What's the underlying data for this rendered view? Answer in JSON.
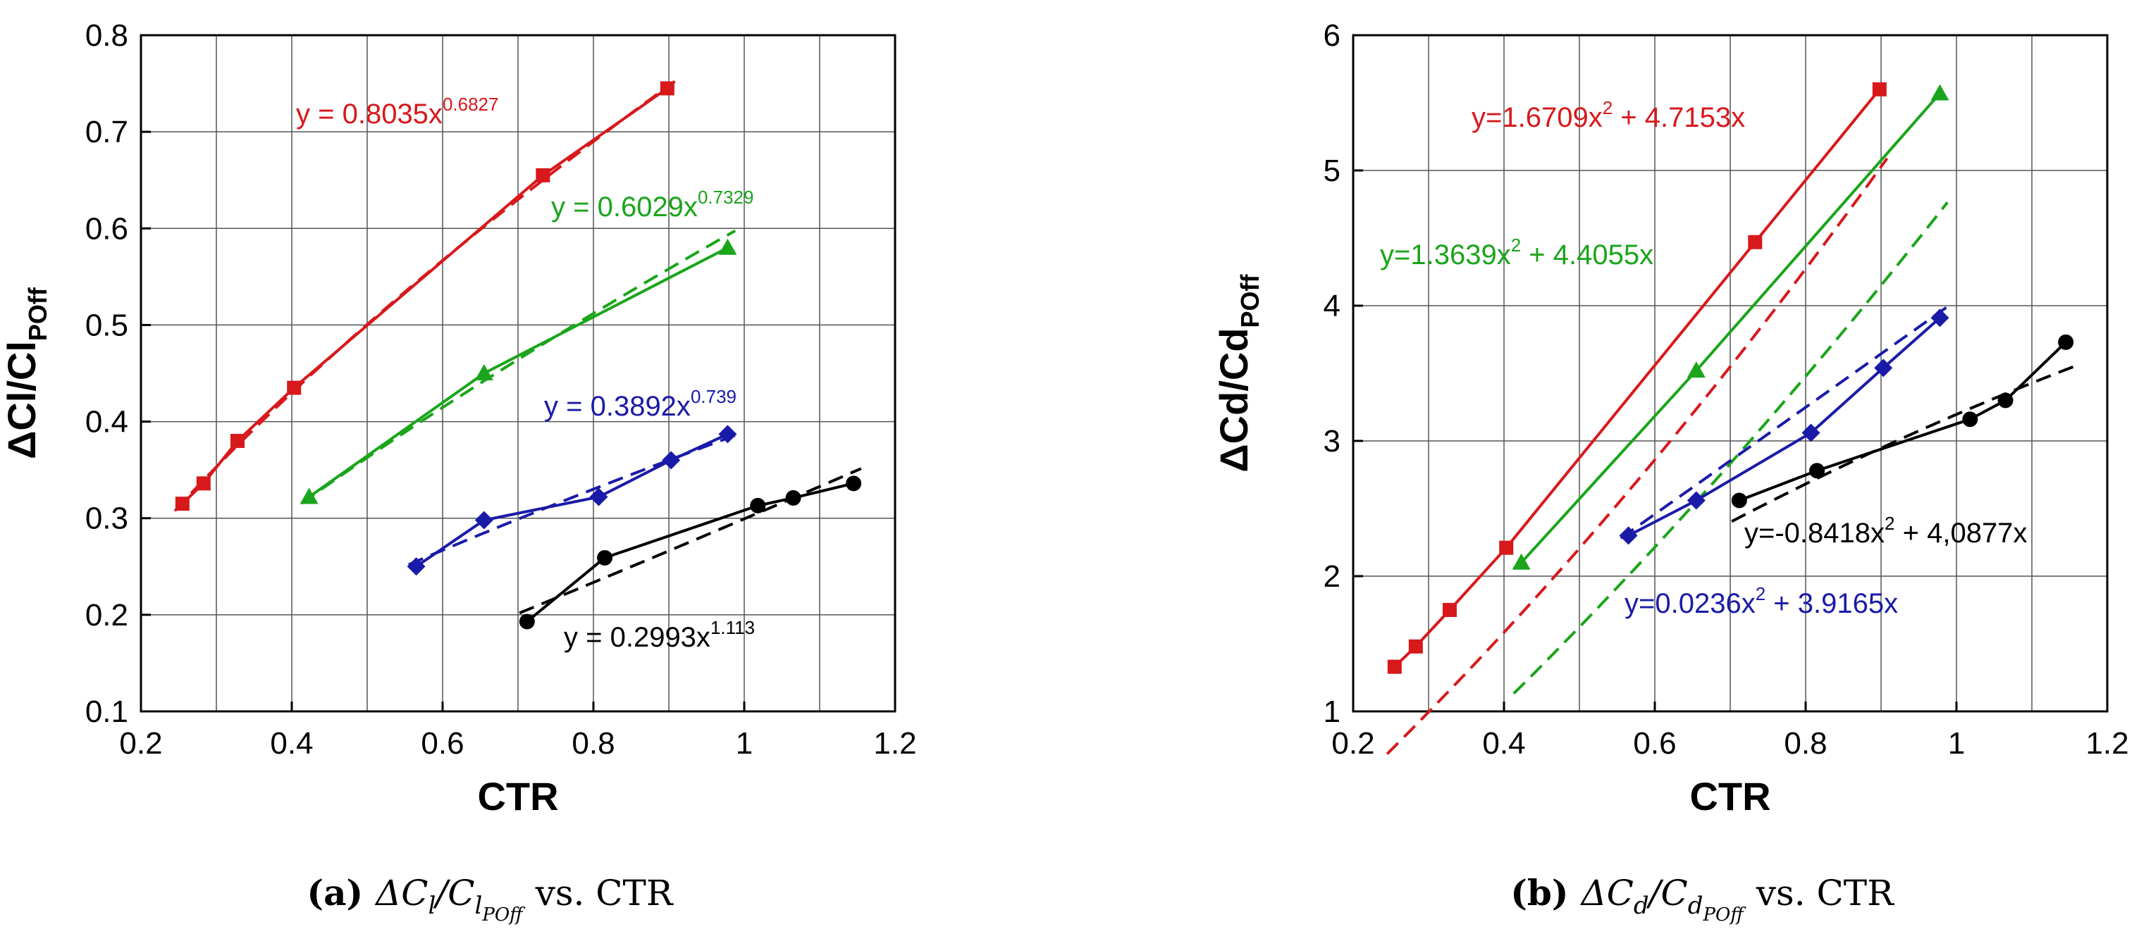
{
  "chart_data": [
    {
      "type": "line",
      "id": "left",
      "xlabel": "CTR",
      "ylabel_main": "ΔCl/Cl",
      "ylabel_sub": "POff",
      "xlim": [
        0.2,
        1.2
      ],
      "ylim": [
        0.1,
        0.8
      ],
      "xticks": [
        0.2,
        0.4,
        0.6,
        0.8,
        1.0,
        1.2
      ],
      "xtick_labels": [
        "0.2",
        "0.4",
        "0.6",
        "0.8",
        "1",
        "1.2"
      ],
      "yticks": [
        0.1,
        0.2,
        0.3,
        0.4,
        0.5,
        0.6,
        0.7,
        0.8
      ],
      "ytick_labels": [
        "0.1",
        "0.2",
        "0.3",
        "0.4",
        "0.5",
        "0.6",
        "0.7",
        "0.8"
      ],
      "caption": {
        "label": "(a)",
        "text": "ΔC",
        "sub": "l",
        "slash": "/C",
        "sub2": "l",
        "sub3": "POff",
        "tail": "vs. CTR"
      },
      "series": [
        {
          "name": "red",
          "color": "#d7191c",
          "marker": "square",
          "x": [
            0.255,
            0.283,
            0.328,
            0.403,
            0.733,
            0.898
          ],
          "y": [
            0.315,
            0.336,
            0.38,
            0.435,
            0.655,
            0.745
          ],
          "fit": {
            "type": "power",
            "a": 0.8035,
            "b": 0.6827
          },
          "equation": {
            "base": "y = 0.8035x",
            "sup": "0.6827"
          }
        },
        {
          "name": "green",
          "color": "#1aa51a",
          "marker": "triangle",
          "x": [
            0.423,
            0.655,
            0.978
          ],
          "y": [
            0.322,
            0.45,
            0.58
          ],
          "fit": {
            "type": "power",
            "a": 0.6029,
            "b": 0.7329
          },
          "equation": {
            "base": "y = 0.6029x",
            "sup": "0.7329"
          }
        },
        {
          "name": "blue",
          "color": "#1a1aa8",
          "marker": "diamond",
          "x": [
            0.565,
            0.655,
            0.807,
            0.903,
            0.978
          ],
          "y": [
            0.25,
            0.298,
            0.322,
            0.36,
            0.387
          ],
          "fit": {
            "type": "power",
            "a": 0.3892,
            "b": 0.739
          },
          "equation": {
            "base": "y = 0.3892x",
            "sup": "0.739"
          }
        },
        {
          "name": "black",
          "color": "#000000",
          "marker": "circle",
          "x": [
            0.712,
            0.815,
            1.018,
            1.065,
            1.145
          ],
          "y": [
            0.193,
            0.259,
            0.313,
            0.321,
            0.336
          ],
          "fit": {
            "type": "power",
            "a": 0.2993,
            "b": 1.113
          },
          "equation": {
            "base": "y = 0.2993x",
            "sup": "1.113"
          }
        }
      ]
    },
    {
      "type": "line",
      "id": "right",
      "xlabel": "CTR",
      "ylabel_main": "ΔCd/Cd",
      "ylabel_sub": "POff",
      "xlim": [
        0.2,
        1.2
      ],
      "ylim": [
        1,
        6
      ],
      "xticks": [
        0.2,
        0.4,
        0.6,
        0.8,
        1.0,
        1.2
      ],
      "xtick_labels": [
        "0.2",
        "0.4",
        "0.6",
        "0.8",
        "1",
        "1.2"
      ],
      "yticks": [
        1,
        2,
        3,
        4,
        5,
        6
      ],
      "ytick_labels": [
        "1",
        "2",
        "3",
        "4",
        "5",
        "6"
      ],
      "caption": {
        "label": "(b)",
        "text": "ΔC",
        "sub": "d",
        "slash": "/C",
        "sub2": "d",
        "sub3": "POff",
        "tail": "vs. CTR"
      },
      "series": [
        {
          "name": "red",
          "color": "#d7191c",
          "marker": "square",
          "x": [
            0.255,
            0.283,
            0.328,
            0.403,
            0.733,
            0.898
          ],
          "y": [
            1.33,
            1.48,
            1.75,
            2.21,
            4.47,
            5.6
          ],
          "fit": {
            "type": "quad",
            "a": 1.6709,
            "b": 4.7153,
            "shift": -0.57
          },
          "equation": {
            "base": "y=1.6709x",
            "sup": "2",
            "tail": " + 4.7153x"
          }
        },
        {
          "name": "green",
          "color": "#1aa51a",
          "marker": "triangle",
          "x": [
            0.423,
            0.655,
            0.978
          ],
          "y": [
            2.1,
            3.52,
            5.57
          ],
          "fit": {
            "type": "quad",
            "a": 1.3639,
            "b": 4.4055,
            "shift": -0.92
          },
          "equation": {
            "base": "y=1.3639x",
            "sup": "2",
            "tail": " + 4.4055x"
          }
        },
        {
          "name": "blue",
          "color": "#1a1aa8",
          "marker": "diamond",
          "x": [
            0.565,
            0.655,
            0.807,
            0.903,
            0.978
          ],
          "y": [
            2.3,
            2.56,
            3.06,
            3.54,
            3.91
          ],
          "fit": {
            "type": "quad",
            "a": 0.0236,
            "b": 3.9165,
            "shift": 0.1
          },
          "equation": {
            "base": "y=0.0236x",
            "sup": "2",
            "tail": " + 3.9165x"
          }
        },
        {
          "name": "black",
          "color": "#000000",
          "marker": "circle",
          "x": [
            0.712,
            0.815,
            1.018,
            1.065,
            1.145
          ],
          "y": [
            2.56,
            2.78,
            3.16,
            3.3,
            3.73
          ],
          "fit": {
            "type": "quad",
            "a": -0.8418,
            "b": 4.0877,
            "shift": -0.05
          },
          "equation": {
            "base": "y=-0.8418x",
            "sup": "2",
            "tail": " + 4,0877x"
          }
        }
      ]
    }
  ]
}
